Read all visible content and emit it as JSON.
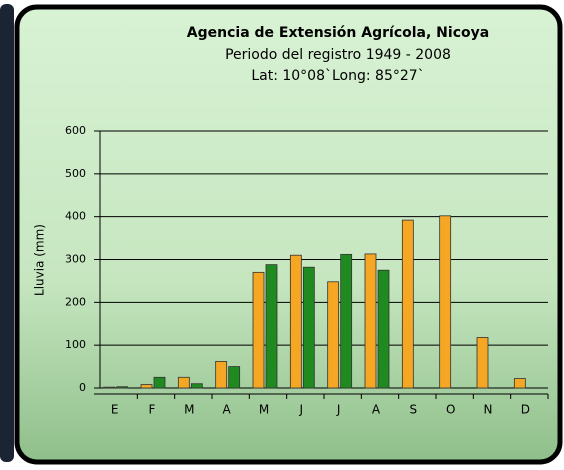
{
  "chart_data": {
    "type": "bar",
    "title": "Agencia de Extensión Agrícola, Nicoya",
    "subtitle": "Periodo del registro 1949 - 2008",
    "location": "Lat: 10°08`Long: 85°27`",
    "y_label": "Lluvia (mm)",
    "categories": [
      "E",
      "F",
      "M",
      "A",
      "M",
      "J",
      "J",
      "A",
      "S",
      "O",
      "N",
      "D"
    ],
    "series": [
      {
        "color": "#f5a623",
        "values": [
          2,
          8,
          25,
          62,
          270,
          310,
          248,
          313,
          392,
          402,
          118,
          22
        ]
      },
      {
        "color": "#1f8a1f",
        "values": [
          3,
          25,
          10,
          50,
          288,
          282,
          312,
          275,
          null,
          null,
          null,
          null
        ]
      }
    ],
    "ylim": [
      0,
      600
    ],
    "yticks": [
      0,
      100,
      200,
      300,
      400,
      500,
      600
    ],
    "grid": true
  }
}
